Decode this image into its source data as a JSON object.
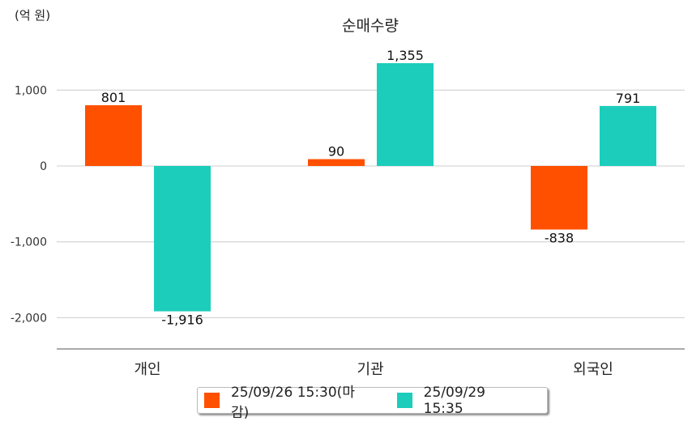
{
  "chart_data": {
    "type": "bar",
    "title": "순매수량",
    "unit_label": "(억 원)",
    "categories": [
      "개인",
      "기관",
      "외국인"
    ],
    "series": [
      {
        "name": "25/09/26 15:30(마감)",
        "color": "#FF5000",
        "values": [
          801,
          90,
          -838
        ],
        "labels": [
          "801",
          "90",
          "-838"
        ]
      },
      {
        "name": "25/09/29 15:35",
        "color": "#1CCDBC",
        "values": [
          -1916,
          1355,
          791
        ],
        "labels": [
          "-1,916",
          "1,355",
          "791"
        ]
      }
    ],
    "yticks": [
      1000,
      0,
      -1000,
      -2000
    ],
    "ytick_labels": [
      "1,000",
      "0",
      "-1,000",
      "-2,000"
    ],
    "ylim": [
      -2417,
      1700
    ],
    "grid": true,
    "legend_position": "bottom"
  }
}
